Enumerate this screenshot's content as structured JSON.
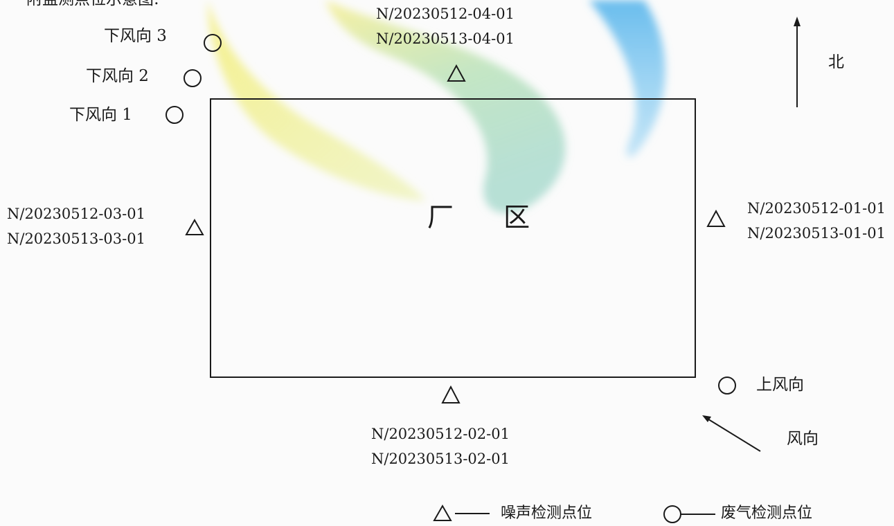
{
  "title": "附监测点位示意图:",
  "plant_label": "厂 区",
  "north_label": "北",
  "wind_label": "风向",
  "upwind_label": "上风向",
  "downwind": [
    {
      "label": "下风向 3"
    },
    {
      "label": "下风向 2"
    },
    {
      "label": "下风向 1"
    }
  ],
  "noise_points": [
    {
      "side": "north",
      "ids": [
        "N/20230512-04-01",
        "N/20230513-04-01"
      ]
    },
    {
      "side": "west",
      "ids": [
        "N/20230512-03-01",
        "N/20230513-03-01"
      ]
    },
    {
      "side": "east",
      "ids": [
        "N/20230512-01-01",
        "N/20230513-01-01"
      ]
    },
    {
      "side": "south",
      "ids": [
        "N/20230512-02-01",
        "N/20230513-02-01"
      ]
    }
  ],
  "legend": {
    "noise_label": "噪声检测点位",
    "gas_label": "废气检测点位"
  },
  "colors": {
    "stroke": "#1a1a1a",
    "watermark_yellow": "#f1e56a",
    "watermark_green": "#8fd0b0",
    "watermark_blue": "#4fb2ea"
  }
}
